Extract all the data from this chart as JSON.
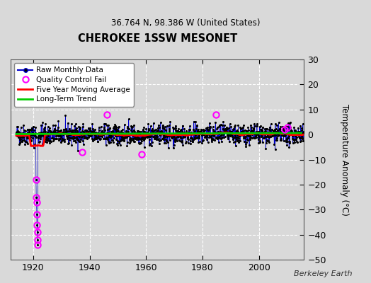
{
  "title": "CHEROKEE 1SSW MESONET",
  "subtitle": "36.764 N, 98.386 W (United States)",
  "ylabel": "Temperature Anomaly (°C)",
  "watermark": "Berkeley Earth",
  "xlim": [
    1912,
    2016
  ],
  "ylim": [
    -50,
    30
  ],
  "yticks": [
    -50,
    -40,
    -30,
    -20,
    -10,
    0,
    10,
    20,
    30
  ],
  "xticks": [
    1920,
    1940,
    1960,
    1980,
    2000
  ],
  "background_color": "#d9d9d9",
  "plot_bg_color": "#d9d9d9",
  "grid_color": "#ffffff",
  "raw_line_color": "#0000cc",
  "raw_dot_color": "#000000",
  "qc_fail_color": "#ff00ff",
  "moving_avg_color": "#ff0000",
  "trend_color": "#00cc00",
  "seed": 42,
  "start_year": 1914,
  "end_year": 2015,
  "early_drop_year": 1921,
  "early_drop_months": [
    1,
    2,
    3,
    4,
    5,
    6,
    7,
    8
  ],
  "early_drop_values": [
    -18,
    -25,
    -27,
    -32,
    -36,
    -39,
    -42,
    -44
  ],
  "qc_fail_times": [
    [
      1921,
      1
    ],
    [
      1921,
      2
    ],
    [
      1921,
      3
    ],
    [
      1921,
      4
    ],
    [
      1921,
      5
    ],
    [
      1921,
      6
    ],
    [
      1921,
      7
    ],
    [
      1921,
      8
    ],
    [
      1937,
      6
    ],
    [
      1946,
      4
    ],
    [
      1958,
      6
    ],
    [
      1984,
      9
    ],
    [
      2009,
      2
    ],
    [
      2010,
      3
    ]
  ],
  "qc_fail_values": [
    -18,
    -25,
    -27,
    -32,
    -36,
    -39,
    -42,
    -44,
    -7,
    8,
    -8,
    8,
    2,
    3
  ]
}
